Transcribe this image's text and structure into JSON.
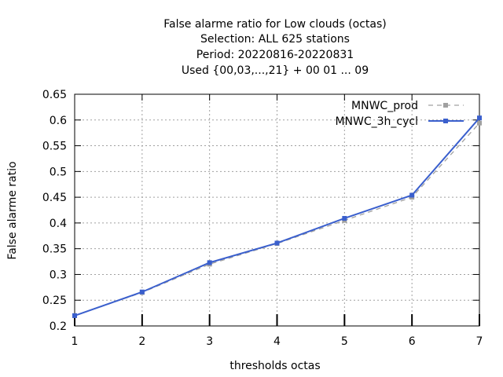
{
  "chart_data": {
    "type": "line",
    "title_lines": [
      "False alarme ratio  for Low clouds (octas)",
      "Selection: ALL    625 stations",
      "Period: 20220816-20220831",
      "Used {00,03,...,21} + 00 01 ... 09"
    ],
    "xlabel": "thresholds octas",
    "ylabel": "False alarme ratio",
    "x": [
      1,
      2,
      3,
      4,
      5,
      6,
      7
    ],
    "xlim": [
      1,
      7
    ],
    "ylim": [
      0.2,
      0.65
    ],
    "xticks": [
      "1",
      "2",
      "3",
      "4",
      "5",
      "6",
      "7"
    ],
    "yticks": [
      "0.2",
      "0.25",
      "0.3",
      "0.35",
      "0.4",
      "0.45",
      "0.5",
      "0.55",
      "0.6",
      "0.65"
    ],
    "grid": true,
    "legend_position": "top-right",
    "series": [
      {
        "name": "MNWC_prod",
        "values": [
          0.22,
          0.265,
          0.32,
          0.36,
          0.405,
          0.45,
          0.594
        ],
        "color": "#a0a0a0",
        "dashed": true
      },
      {
        "name": "MNWC_3h_cycl",
        "values": [
          0.22,
          0.266,
          0.323,
          0.361,
          0.409,
          0.454,
          0.604
        ],
        "color": "#3a5fcd",
        "dashed": false
      }
    ]
  }
}
